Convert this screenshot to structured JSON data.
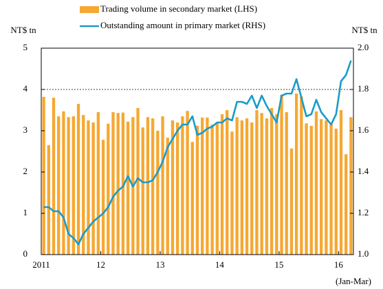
{
  "chart_data": {
    "type": "bar",
    "ylabel": "NT$ tn",
    "y2label": "NT$ tn",
    "annotation": "(Jan-Mar)",
    "categories": [
      "2011",
      null,
      null,
      null,
      null,
      null,
      null,
      null,
      null,
      null,
      null,
      null,
      "12",
      null,
      null,
      null,
      null,
      null,
      null,
      null,
      null,
      null,
      null,
      null,
      "13",
      null,
      null,
      null,
      null,
      null,
      null,
      null,
      null,
      null,
      null,
      null,
      "14",
      null,
      null,
      null,
      null,
      null,
      null,
      null,
      null,
      null,
      null,
      null,
      "15",
      null,
      null,
      null,
      null,
      null,
      null,
      null,
      null,
      null,
      null,
      null,
      "16",
      null,
      null
    ],
    "series": [
      {
        "name": "Trading volume in secondary market (LHS)",
        "type": "bar",
        "color": "#f6a832",
        "values": [
          3.82,
          2.65,
          3.8,
          3.35,
          3.47,
          3.33,
          3.35,
          3.65,
          3.38,
          3.25,
          3.2,
          3.45,
          2.78,
          3.17,
          3.45,
          3.43,
          3.44,
          3.22,
          3.33,
          3.55,
          3.08,
          3.33,
          3.3,
          3.0,
          3.35,
          2.83,
          3.25,
          3.2,
          3.35,
          3.48,
          2.73,
          3.12,
          3.32,
          3.32,
          3.15,
          3.2,
          3.4,
          3.5,
          2.98,
          3.33,
          3.25,
          3.3,
          3.2,
          3.5,
          3.43,
          3.3,
          3.55,
          3.4,
          3.87,
          3.45,
          2.57,
          3.9,
          3.83,
          3.18,
          3.12,
          3.47,
          3.28,
          3.25,
          3.2,
          3.05,
          3.5,
          2.43,
          3.33
        ]
      },
      {
        "name": "Outstanding amount in primary market (RHS)",
        "type": "line",
        "axis": "y2",
        "color": "#1a9bc9",
        "values": [
          1.23,
          1.23,
          1.21,
          1.21,
          1.18,
          1.1,
          1.08,
          1.05,
          1.1,
          1.13,
          1.16,
          1.18,
          1.2,
          1.23,
          1.28,
          1.31,
          1.33,
          1.38,
          1.33,
          1.37,
          1.35,
          1.35,
          1.36,
          1.4,
          1.45,
          1.52,
          1.56,
          1.6,
          1.63,
          1.63,
          1.67,
          1.58,
          1.59,
          1.61,
          1.62,
          1.64,
          1.64,
          1.66,
          1.65,
          1.74,
          1.74,
          1.73,
          1.77,
          1.71,
          1.77,
          1.72,
          1.68,
          1.64,
          1.77,
          1.78,
          1.78,
          1.85,
          1.76,
          1.67,
          1.68,
          1.75,
          1.69,
          1.66,
          1.63,
          1.68,
          1.84,
          1.87,
          1.94
        ]
      }
    ],
    "ylim": [
      0,
      5
    ],
    "yticks": [
      0,
      1,
      2,
      3,
      4,
      5
    ],
    "y2lim": [
      1,
      2
    ],
    "y2ticks": [
      {
        "value": 1,
        "label": "1.0"
      },
      1.2,
      1.4,
      1.6,
      1.8,
      {
        "value": 2,
        "label": "2.0"
      }
    ],
    "gridlines": [
      4
    ],
    "legend": "top"
  }
}
